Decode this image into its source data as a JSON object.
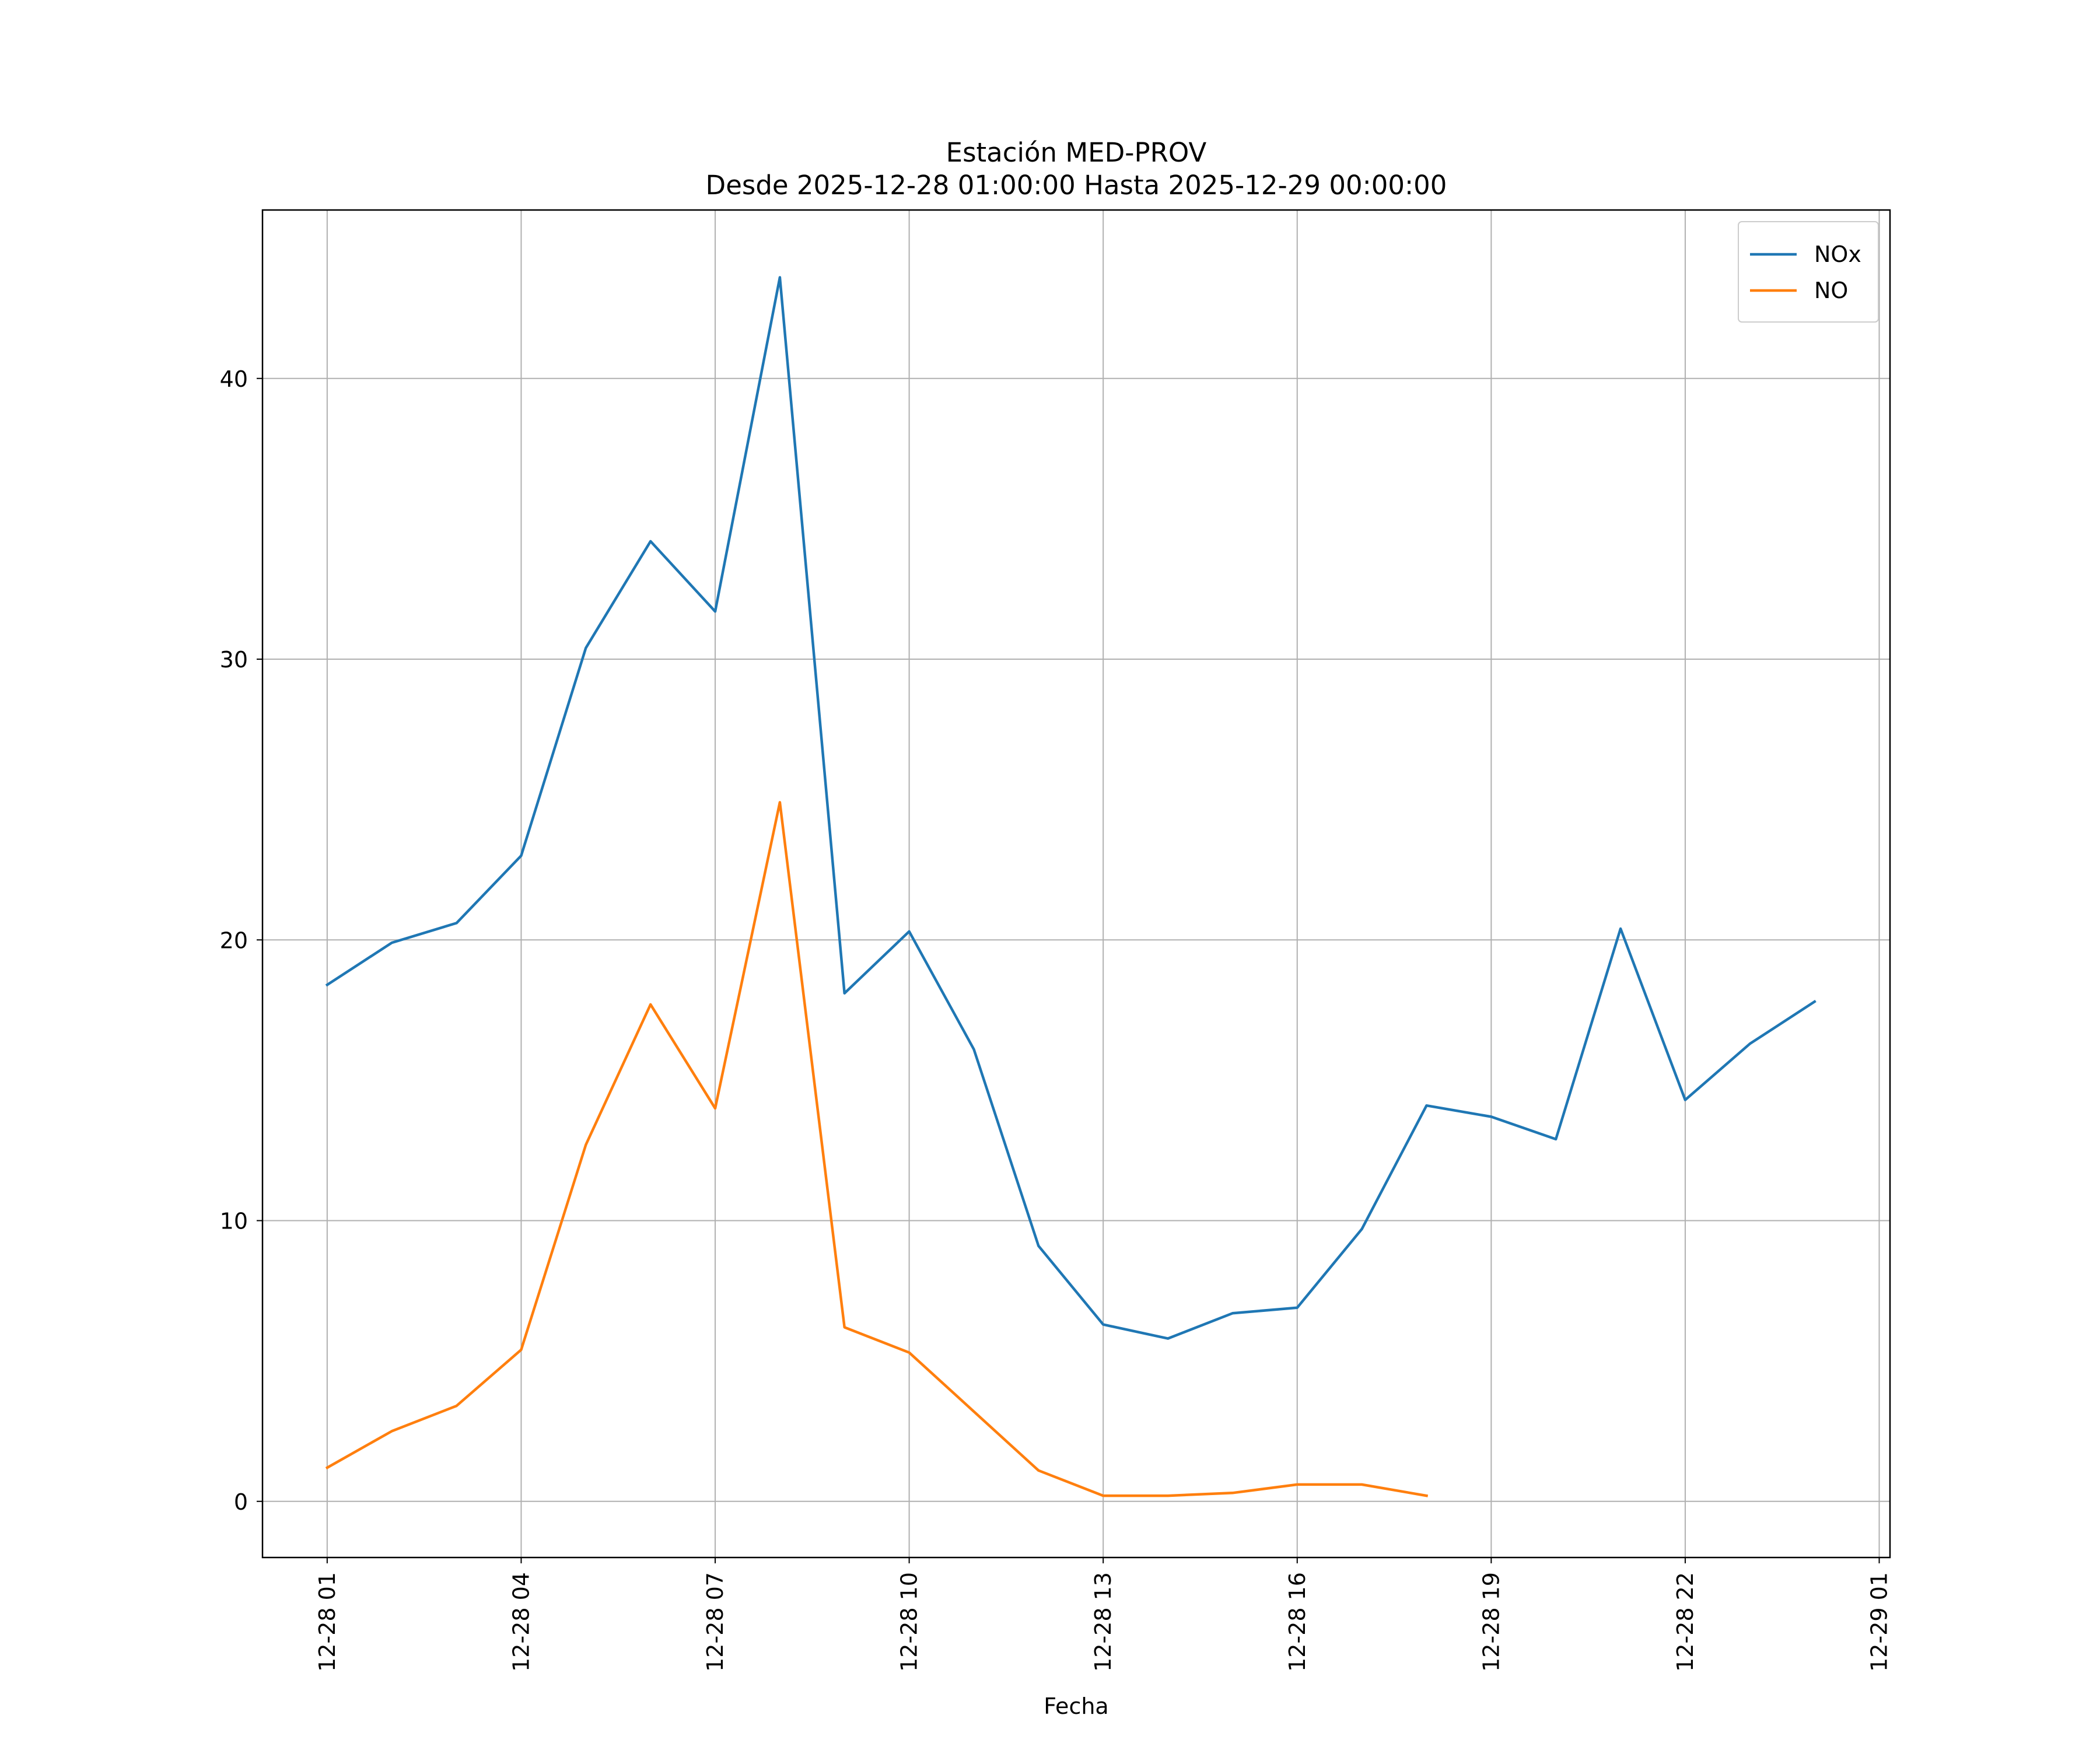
{
  "chart_data": {
    "type": "line",
    "title": "Estación MED-PROV",
    "subtitle": "Desde 2025-12-28 01:00:00 Hasta 2025-12-29 00:00:00",
    "xlabel": "Fecha",
    "ylabel": "",
    "x_type": "datetime",
    "xlim": [
      "2025-12-28 00:00",
      "2025-12-29 01:10"
    ],
    "ylim": [
      -2,
      46
    ],
    "x_ticks": [
      "2025-12-28 01:00",
      "2025-12-28 04:00",
      "2025-12-28 07:00",
      "2025-12-28 10:00",
      "2025-12-28 13:00",
      "2025-12-28 16:00",
      "2025-12-28 19:00",
      "2025-12-28 22:00",
      "2025-12-29 01:00"
    ],
    "x_tick_labels": [
      "12-28 01",
      "12-28 04",
      "12-28 07",
      "12-28 10",
      "12-28 13",
      "12-28 16",
      "12-28 19",
      "12-28 22",
      "12-29 01"
    ],
    "y_ticks": [
      0,
      10,
      20,
      30,
      40
    ],
    "y_tick_labels": [
      "0",
      "10",
      "20",
      "30",
      "40"
    ],
    "grid": true,
    "legend_position": "top-right",
    "series": [
      {
        "name": "NOx",
        "color": "#1f77b4",
        "x": [
          "2025-12-28 01:00",
          "2025-12-28 02:00",
          "2025-12-28 03:00",
          "2025-12-28 04:00",
          "2025-12-28 05:00",
          "2025-12-28 06:00",
          "2025-12-28 07:00",
          "2025-12-28 08:00",
          "2025-12-28 09:00",
          "2025-12-28 10:00",
          "2025-12-28 11:00",
          "2025-12-28 12:00",
          "2025-12-28 13:00",
          "2025-12-28 14:00",
          "2025-12-28 15:00",
          "2025-12-28 16:00",
          "2025-12-28 17:00",
          "2025-12-28 18:00",
          "2025-12-28 19:00",
          "2025-12-28 20:00",
          "2025-12-28 21:00",
          "2025-12-28 22:00",
          "2025-12-28 23:00",
          "2025-12-29 00:00"
        ],
        "values": [
          18.4,
          19.9,
          20.6,
          23.0,
          30.4,
          34.2,
          31.7,
          43.6,
          18.1,
          20.3,
          16.1,
          9.1,
          6.3,
          5.8,
          6.7,
          6.9,
          9.7,
          14.1,
          13.7,
          12.9,
          20.4,
          14.3,
          16.3,
          17.8
        ]
      },
      {
        "name": "NO",
        "color": "#ff7f0e",
        "x": [
          "2025-12-28 01:00",
          "2025-12-28 02:00",
          "2025-12-28 03:00",
          "2025-12-28 04:00",
          "2025-12-28 05:00",
          "2025-12-28 06:00",
          "2025-12-28 07:00",
          "2025-12-28 08:00",
          "2025-12-28 09:00",
          "2025-12-28 10:00",
          "2025-12-28 11:00",
          "2025-12-28 12:00",
          "2025-12-28 13:00",
          "2025-12-28 14:00",
          "2025-12-28 15:00",
          "2025-12-28 16:00",
          "2025-12-28 17:00",
          "2025-12-28 18:00"
        ],
        "values": [
          1.2,
          2.5,
          3.4,
          5.4,
          12.7,
          17.7,
          14.0,
          24.9,
          6.2,
          5.3,
          3.2,
          1.1,
          0.2,
          0.2,
          0.3,
          0.6,
          0.6,
          0.2
        ]
      }
    ]
  }
}
